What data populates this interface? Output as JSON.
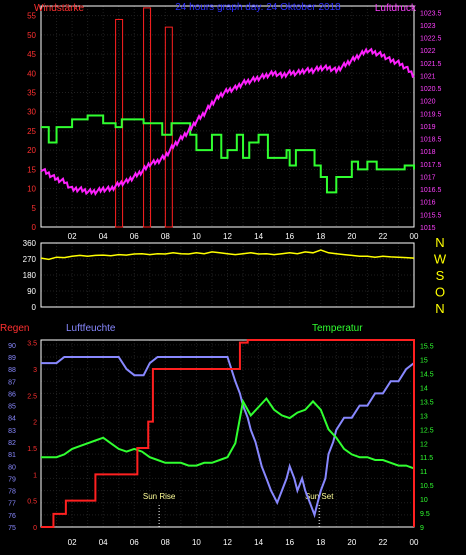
{
  "chart_data": [
    {
      "type": "line",
      "title": "24 hours graph day. 24 Oktober 2018",
      "left_axis_title": "Windstärke",
      "right_axis_title": "Luftdruck",
      "x_ticks": [
        "02",
        "04",
        "06",
        "08",
        "10",
        "12",
        "14",
        "16",
        "18",
        "20",
        "22",
        "00"
      ],
      "left_ticks": [
        "0",
        "5",
        "10",
        "15",
        "20",
        "25",
        "30",
        "35",
        "40",
        "45",
        "50",
        "55"
      ],
      "right_ticks": [
        "1015",
        "1015.5",
        "1016",
        "1016.5",
        "1017",
        "1017.5",
        "1018",
        "1018.5",
        "1019",
        "1019.5",
        "1020",
        "1020.5",
        "1021",
        "1021.5",
        "1022",
        "1022.5",
        "1023",
        "1023.5"
      ],
      "left_ylim": [
        0,
        57.5
      ],
      "right_ylim": [
        1015,
        1023.75
      ],
      "xlim": [
        0,
        24
      ],
      "series": [
        {
          "color": "#ff2020",
          "style": "bars",
          "x": [
            4.8,
            4.9,
            5.0,
            5.1,
            6.6,
            6.7,
            6.8,
            7.0,
            8.0,
            8.2,
            8.4
          ],
          "values": [
            54,
            54,
            54,
            54,
            57,
            57,
            57,
            57,
            52,
            52,
            52
          ]
        },
        {
          "color": "#30ff30",
          "style": "step",
          "x": [
            0,
            0.5,
            1,
            1.4,
            2,
            2.6,
            3,
            3.6,
            4,
            4.8,
            5.2,
            6,
            6.6,
            7.2,
            7.8,
            8.4,
            9,
            9.6,
            10,
            10.6,
            11,
            11.6,
            12,
            12.6,
            13,
            13.4,
            14,
            14.6,
            15,
            15.8,
            16,
            16.4,
            17,
            17.6,
            18,
            18.4,
            19,
            19.4,
            20,
            20.4,
            21,
            21.6,
            22,
            22.6,
            23,
            23.4,
            24
          ],
          "values": [
            26,
            22,
            26,
            26,
            28,
            28,
            29,
            29,
            27,
            26,
            28,
            28,
            27,
            27,
            24,
            27,
            27,
            24,
            20,
            20,
            24,
            18,
            20,
            24,
            18,
            22,
            24,
            18,
            18,
            20,
            16,
            20,
            20,
            16,
            13,
            9,
            13,
            13,
            17,
            15,
            17,
            15,
            15,
            15,
            15,
            16,
            15
          ]
        },
        {
          "color": "#ff20ff",
          "style": "line",
          "axis": "right",
          "x": [
            0,
            0.5,
            1,
            1.5,
            2,
            2.5,
            3,
            3.5,
            4,
            4.5,
            5,
            5.5,
            6,
            6.5,
            7,
            7.5,
            8,
            8.5,
            9,
            9.5,
            10,
            10.5,
            11,
            11.5,
            12,
            12.5,
            13,
            13.5,
            14,
            14.5,
            15,
            15.5,
            16,
            16.5,
            17,
            17.5,
            18,
            18.5,
            19,
            19.5,
            20,
            20.5,
            21,
            21.5,
            22,
            22.5,
            23,
            23.5,
            24
          ],
          "values": [
            1017.3,
            1017.1,
            1016.9,
            1016.8,
            1016.5,
            1016.5,
            1016.4,
            1016.4,
            1016.5,
            1016.5,
            1016.7,
            1016.8,
            1017,
            1017.2,
            1017.5,
            1017.6,
            1017.8,
            1018.2,
            1018.5,
            1018.8,
            1019.2,
            1019.5,
            1019.9,
            1020.2,
            1020.4,
            1020.5,
            1020.7,
            1020.8,
            1020.9,
            1021,
            1021.1,
            1021,
            1021.1,
            1021.1,
            1021.2,
            1021.2,
            1021.3,
            1021.3,
            1021.2,
            1021.4,
            1021.6,
            1021.8,
            1022,
            1021.9,
            1021.8,
            1021.6,
            1021.5,
            1021.3,
            1021
          ]
        }
      ]
    },
    {
      "type": "line",
      "right_labels": [
        "N",
        "W",
        "S",
        "O",
        "N"
      ],
      "left_ticks": [
        "0",
        "90",
        "180",
        "270",
        "360"
      ],
      "ylim": [
        0,
        360
      ],
      "xlim": [
        0,
        24
      ],
      "series": [
        {
          "color": "#ffff00",
          "x": [
            0,
            0.5,
            1,
            1.5,
            2,
            2.5,
            3,
            3.5,
            4,
            4.5,
            5,
            5.5,
            6,
            6.5,
            7,
            7.5,
            8,
            8.5,
            9,
            9.5,
            10,
            10.5,
            11,
            11.5,
            12,
            12.5,
            13,
            13.5,
            14,
            14.5,
            15,
            15.5,
            16,
            16.5,
            17,
            17.5,
            18,
            18.5,
            19,
            19.5,
            20,
            20.5,
            21,
            21.5,
            22,
            22.5,
            23,
            23.5,
            24
          ],
          "values": [
            275,
            268,
            280,
            278,
            285,
            290,
            285,
            290,
            292,
            288,
            295,
            292,
            298,
            300,
            295,
            300,
            298,
            305,
            300,
            298,
            305,
            300,
            310,
            305,
            300,
            295,
            300,
            305,
            298,
            300,
            295,
            300,
            305,
            300,
            310,
            305,
            320,
            305,
            300,
            295,
            290,
            285,
            285,
            280,
            285,
            282,
            280,
            278,
            275
          ]
        }
      ]
    },
    {
      "type": "line",
      "left_axis_title": "Regen",
      "humidity_title": "Luftfeuchte",
      "right_axis_title": "Temperatur",
      "x_ticks": [
        "02",
        "04",
        "06",
        "08",
        "10",
        "12",
        "14",
        "16",
        "18",
        "20",
        "22",
        "00"
      ],
      "humidity_ticks": [
        "75",
        "76",
        "77",
        "78",
        "79",
        "80",
        "81",
        "82",
        "83",
        "84",
        "85",
        "86",
        "87",
        "88",
        "89",
        "90"
      ],
      "rain_ticks": [
        "0",
        "0.5",
        "1",
        "1.5",
        "2",
        "2.5",
        "3",
        "3.5"
      ],
      "temp_ticks": [
        "9",
        "9.5",
        "10",
        "10.5",
        "11",
        "11.5",
        "12",
        "12.5",
        "13",
        "13.5",
        "14",
        "14.5",
        "15",
        "15.5"
      ],
      "rain_ylim": [
        0,
        3.55
      ],
      "humidity_ylim": [
        75,
        90.4
      ],
      "temp_ylim": [
        9,
        15.7
      ],
      "xlim": [
        0,
        24
      ],
      "annotations": [
        {
          "text": "Sun Rise",
          "x": 7.6
        },
        {
          "text": "Sun Set",
          "x": 17.9
        }
      ],
      "series": [
        {
          "name": "Luftfeuchte",
          "color": "#8888ff",
          "axis": "humidity",
          "x": [
            0,
            1,
            1.5,
            3,
            3.5,
            5,
            5.5,
            6,
            6.6,
            7,
            7.5,
            8,
            9,
            10,
            11,
            12,
            12.5,
            12.8,
            13,
            13.3,
            13.5,
            13.8,
            14,
            14.2,
            14.5,
            14.8,
            15,
            15.2,
            15.5,
            15.8,
            16,
            16.3,
            16.5,
            16.8,
            17,
            17.3,
            17.6,
            17.8,
            18,
            18.3,
            18.5,
            18.8,
            19,
            19.5,
            20,
            20.5,
            21,
            21.5,
            22,
            22.5,
            23,
            23.5,
            24
          ],
          "values": [
            88.5,
            88.5,
            89,
            89,
            89,
            89,
            88,
            87.5,
            87.5,
            88.5,
            89,
            89,
            89,
            89,
            89,
            89,
            87,
            86,
            85,
            84,
            83,
            82,
            81,
            80,
            79,
            78,
            77.5,
            77,
            78,
            79,
            80,
            79,
            78,
            79,
            78,
            77,
            76,
            77,
            78,
            79,
            81,
            82,
            83,
            84,
            84,
            85,
            85,
            86,
            86,
            87,
            87,
            88,
            88.5
          ]
        },
        {
          "name": "Temperatur",
          "color": "#30ff30",
          "axis": "temp",
          "x": [
            0,
            1,
            1.5,
            2,
            2.5,
            3,
            3.5,
            4,
            4.5,
            5,
            5.5,
            6,
            6.5,
            7,
            7.5,
            8,
            8.5,
            9,
            9.5,
            10,
            10.5,
            11,
            11.5,
            12,
            12.5,
            13,
            13.5,
            14,
            14.5,
            15,
            15.5,
            16,
            16.5,
            17,
            17.5,
            18,
            18.5,
            19,
            19.5,
            20,
            20.5,
            21,
            21.5,
            22,
            22.5,
            23,
            23.5,
            24
          ],
          "values": [
            11.5,
            11.5,
            11.6,
            11.8,
            11.9,
            12,
            12.1,
            12.2,
            12,
            11.8,
            11.7,
            11.8,
            11.7,
            11.5,
            11.4,
            11.3,
            11.3,
            11.3,
            11.2,
            11.2,
            11.3,
            11.3,
            11.4,
            11.5,
            12,
            13.5,
            13,
            13.3,
            13.6,
            13.2,
            13,
            12.9,
            13.1,
            13.2,
            13.5,
            13.2,
            12.5,
            12.2,
            11.8,
            11.6,
            11.5,
            11.5,
            11.4,
            11.4,
            11.3,
            11.2,
            11.2,
            11.1
          ]
        },
        {
          "name": "Regen",
          "color": "#ff2020",
          "axis": "rain",
          "style": "step",
          "x": [
            0,
            0.8,
            1.6,
            3.5,
            6.2,
            6.9,
            7.2,
            9.6,
            12.8,
            13.3,
            24
          ],
          "values": [
            0,
            0.25,
            0.5,
            1,
            1.5,
            2,
            3,
            3,
            3.5,
            3.55,
            0
          ]
        }
      ]
    }
  ]
}
